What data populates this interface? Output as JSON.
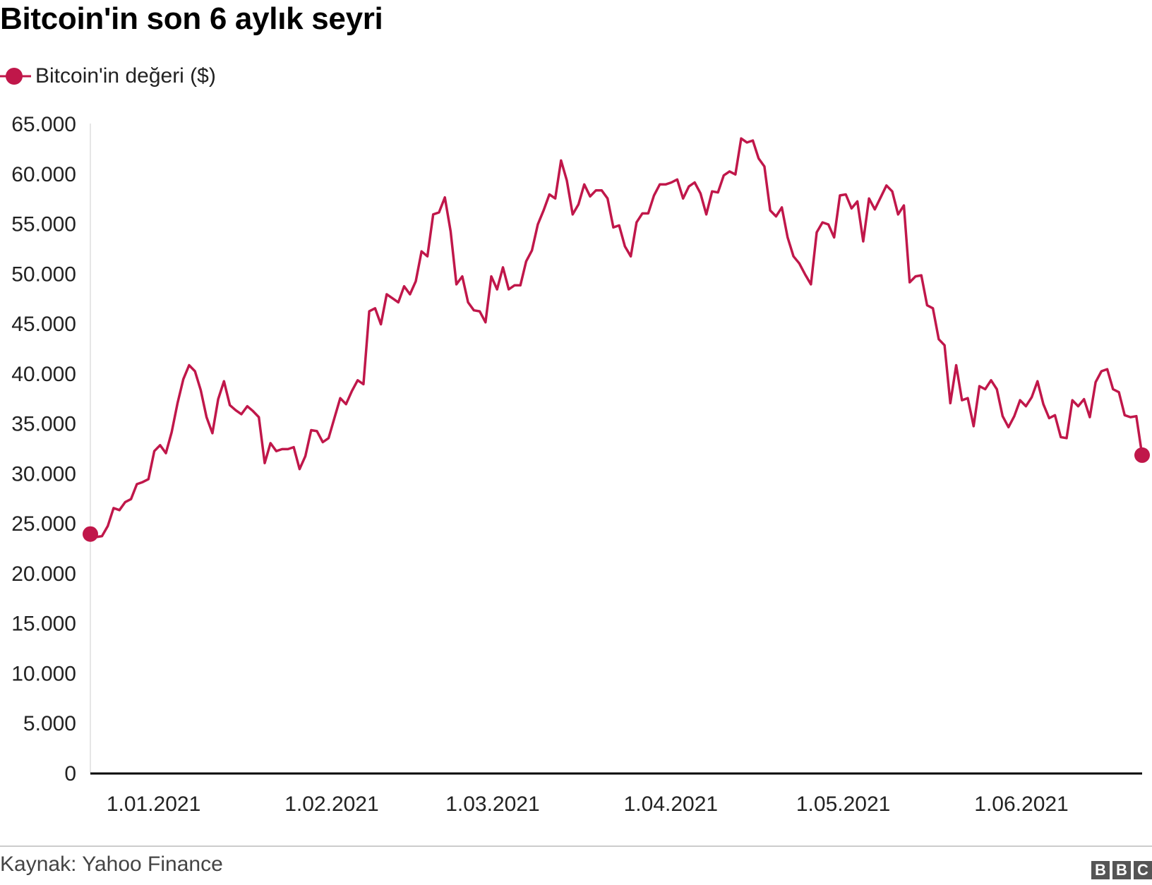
{
  "title": "Bitcoin'in son 6 aylık seyri",
  "legend": {
    "label": "Bitcoin'in değeri ($)"
  },
  "source": "Kaynak: Yahoo Finance",
  "logo": {
    "letters": [
      "B",
      "B",
      "C"
    ]
  },
  "colors": {
    "series": "#c0174a",
    "axis": "#000000",
    "text": "#222222"
  },
  "chart_data": {
    "type": "line",
    "title": "Bitcoin'in son 6 aylık seyri",
    "xlabel": "",
    "ylabel": "",
    "ylim": [
      0,
      65000
    ],
    "xlim": [
      "2020-12-21",
      "2021-06-22"
    ],
    "grid": false,
    "legend_position": "top-left",
    "y_ticks": [
      {
        "value": 0,
        "label": "0"
      },
      {
        "value": 5000,
        "label": "5.000"
      },
      {
        "value": 10000,
        "label": "10.000"
      },
      {
        "value": 15000,
        "label": "15.000"
      },
      {
        "value": 20000,
        "label": "20.000"
      },
      {
        "value": 25000,
        "label": "25.000"
      },
      {
        "value": 30000,
        "label": "30.000"
      },
      {
        "value": 35000,
        "label": "35.000"
      },
      {
        "value": 40000,
        "label": "40.000"
      },
      {
        "value": 45000,
        "label": "45.000"
      },
      {
        "value": 50000,
        "label": "50.000"
      },
      {
        "value": 55000,
        "label": "55.000"
      },
      {
        "value": 60000,
        "label": "60.000"
      },
      {
        "value": 65000,
        "label": "65.000"
      }
    ],
    "x_ticks": [
      {
        "value": "2021-01-01",
        "label": "1.01.2021"
      },
      {
        "value": "2021-02-01",
        "label": "1.02.2021"
      },
      {
        "value": "2021-03-01",
        "label": "1.03.2021"
      },
      {
        "value": "2021-04-01",
        "label": "1.04.2021"
      },
      {
        "value": "2021-05-01",
        "label": "1.05.2021"
      },
      {
        "value": "2021-06-01",
        "label": "1.06.2021"
      }
    ],
    "series": [
      {
        "name": "Bitcoin'in değeri ($)",
        "color": "#c0174a",
        "start": "2020-12-21",
        "end": "2021-06-22",
        "values": [
          23900,
          23600,
          23700,
          24700,
          26500,
          26300,
          27100,
          27400,
          28900,
          29100,
          29400,
          32200,
          32800,
          32000,
          34100,
          37000,
          39400,
          40800,
          40200,
          38300,
          35600,
          34000,
          37400,
          39200,
          36800,
          36300,
          35900,
          36700,
          36200,
          35600,
          31000,
          33000,
          32200,
          32400,
          32400,
          32600,
          30400,
          31700,
          34300,
          34200,
          33100,
          33500,
          35500,
          37500,
          36900,
          38200,
          39300,
          38900,
          46200,
          46500,
          44900,
          47900,
          47500,
          47100,
          48700,
          47900,
          49200,
          52200,
          51700,
          55900,
          56100,
          57600,
          54200,
          48900,
          49700,
          47100,
          46300,
          46200,
          45100,
          49700,
          48400,
          50600,
          48400,
          48800,
          48800,
          51200,
          52300,
          54900,
          56300,
          57900,
          57500,
          61300,
          59300,
          55900,
          56900,
          58900,
          57700,
          58300,
          58300,
          57500,
          54600,
          54800,
          52700,
          51700,
          55100,
          56000,
          56000,
          57800,
          58900,
          58900,
          59100,
          59400,
          57500,
          58700,
          59100,
          58000,
          55900,
          58200,
          58100,
          59800,
          60200,
          59900,
          63500,
          63100,
          63300,
          61500,
          60700,
          56300,
          55700,
          56600,
          53600,
          51700,
          51000,
          49900,
          48900,
          54100,
          55100,
          54900,
          53600,
          57800,
          57900,
          56500,
          57200,
          53200,
          57500,
          56400,
          57600,
          58800,
          58200,
          55900,
          56800,
          49100,
          49700,
          49800,
          46800,
          46500,
          43400,
          42800,
          37000,
          40800,
          37300,
          37500,
          34700,
          38700,
          38400,
          39300,
          38400,
          35700,
          34600,
          35700,
          37300,
          36700,
          37600,
          39200,
          36900,
          35500,
          35800,
          33600,
          33500,
          37300,
          36700,
          37400,
          35600,
          39100,
          40200,
          40400,
          38400,
          38100,
          35800,
          35600,
          35700,
          31800
        ]
      }
    ]
  }
}
